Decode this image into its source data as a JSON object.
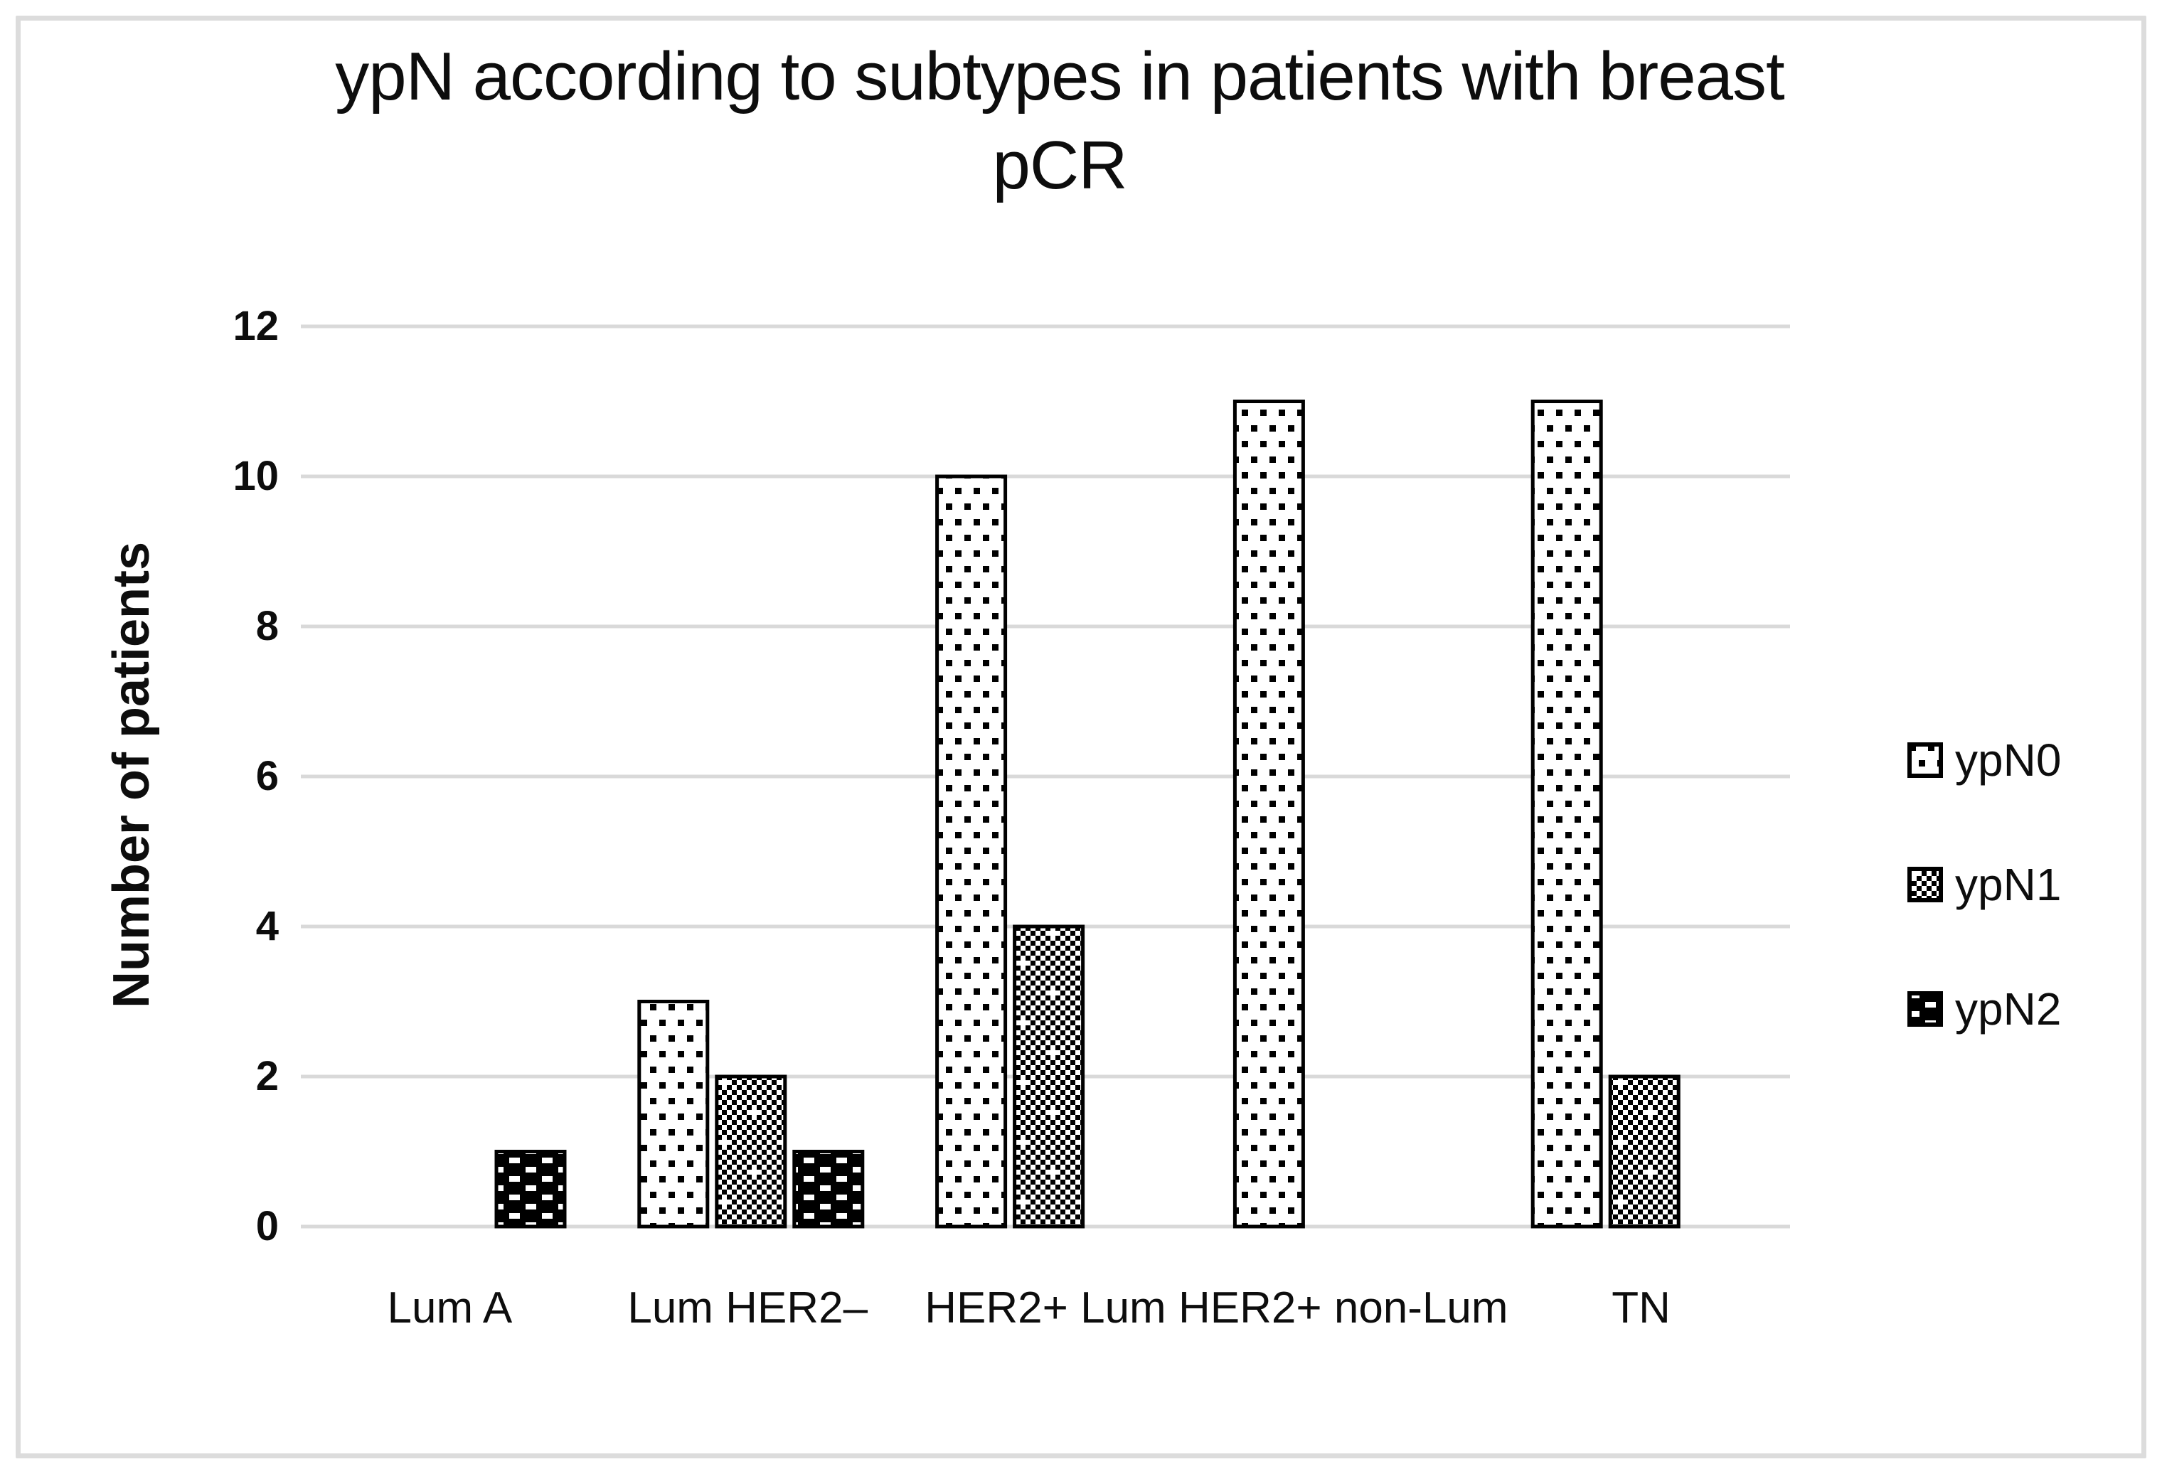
{
  "chart_data": {
    "type": "bar",
    "title": "ypN according to subtypes in patients with breast pCR",
    "xlabel": "",
    "ylabel": "Number of patients",
    "categories": [
      "Lum A",
      "Lum HER2–",
      "HER2+ Lum",
      "HER2+ non-Lum",
      "TN"
    ],
    "series": [
      {
        "name": "ypN0",
        "pattern": "dotted",
        "values": [
          0,
          3,
          10,
          11,
          11
        ]
      },
      {
        "name": "ypN1",
        "pattern": "checkerboard",
        "values": [
          0,
          2,
          4,
          0,
          2
        ]
      },
      {
        "name": "ypN2",
        "pattern": "black-dash",
        "values": [
          1,
          1,
          0,
          0,
          0
        ]
      }
    ],
    "ylim": [
      0,
      12
    ],
    "ytick_step": 2,
    "yticks": [
      0,
      2,
      4,
      6,
      8,
      10,
      12
    ],
    "grid": true,
    "legend_position": "right",
    "colors": {
      "grid": "#d9d9d9",
      "bar_stroke": "#000000",
      "bar_fill_base": "#ffffff",
      "pattern_ink": "#000000",
      "text": "#0d0d0d",
      "frame": "#dcdcdc"
    }
  }
}
